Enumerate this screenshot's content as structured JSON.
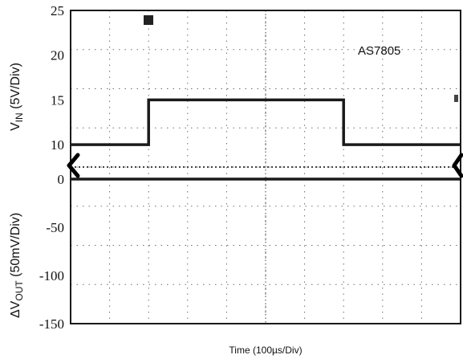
{
  "chart_data": {
    "type": "line",
    "annotation": "AS7805",
    "xlabel": "Time (100µs/Div)",
    "x_divisions": 10,
    "top_panel": {
      "ylabel_main": "V",
      "ylabel_sub": "IN",
      "ylabel_rest": " (5V/Div)",
      "ylim": [
        7.5,
        25
      ],
      "ticks": [
        25,
        20,
        15,
        10
      ],
      "series": [
        {
          "points": [
            [
              0,
              10
            ],
            [
              2,
              10
            ],
            [
              2,
              15
            ],
            [
              7,
              15
            ],
            [
              7,
              10
            ],
            [
              10,
              10
            ]
          ]
        }
      ]
    },
    "bottom_panel": {
      "ylabel_prefix": "ΔV",
      "ylabel_sub": "OUT",
      "ylabel_rest": " (50mV/Div)",
      "ylim": [
        -150,
        12.5
      ],
      "ticks": [
        0,
        -50,
        -100,
        -150
      ],
      "series": [
        {
          "points": [
            [
              0,
              0
            ],
            [
              10,
              0
            ]
          ]
        }
      ]
    },
    "grid": true
  }
}
